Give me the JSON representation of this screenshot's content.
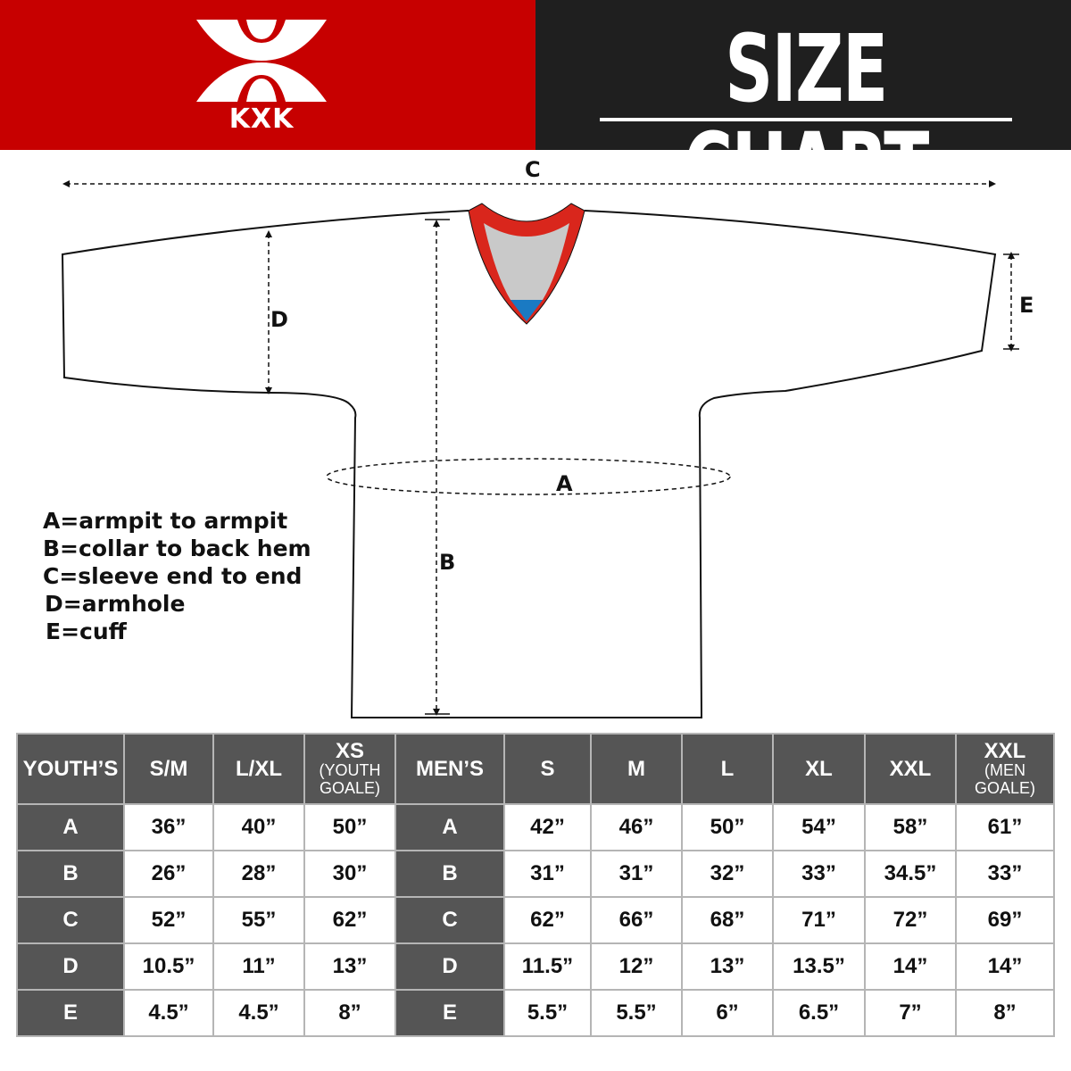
{
  "header": {
    "brand": "KXK",
    "title": "SIZE CHART",
    "colors": {
      "red": "#c70000",
      "dark": "#1f1f1f"
    }
  },
  "diagram": {
    "labels": {
      "a": "A",
      "b": "B",
      "c": "C",
      "d": "D",
      "e": "E"
    }
  },
  "legend": [
    "A=armpit to armpit",
    "B=collar to back hem",
    "C=sleeve end to end",
    "D=armhole",
    "E=cuff"
  ],
  "table": {
    "youth_header": "YOUTH’S",
    "men_header": "MEN’S",
    "youth_sizes": [
      {
        "main": "S/M",
        "sub": ""
      },
      {
        "main": "L/XL",
        "sub": ""
      },
      {
        "main": "XS",
        "sub": "(YOUTH GOALE)"
      }
    ],
    "men_sizes": [
      {
        "main": "S",
        "sub": ""
      },
      {
        "main": "M",
        "sub": ""
      },
      {
        "main": "L",
        "sub": ""
      },
      {
        "main": "XL",
        "sub": ""
      },
      {
        "main": "XXL",
        "sub": ""
      },
      {
        "main": "XXL",
        "sub": "(MEN GOALE)"
      }
    ],
    "rows": [
      {
        "label": "A",
        "youth": [
          "36”",
          "40”",
          "50”"
        ],
        "men": [
          "42”",
          "46”",
          "50”",
          "54”",
          "58”",
          "61”"
        ]
      },
      {
        "label": "B",
        "youth": [
          "26”",
          "28”",
          "30”"
        ],
        "men": [
          "31”",
          "31”",
          "32”",
          "33”",
          "34.5”",
          "33”"
        ]
      },
      {
        "label": "C",
        "youth": [
          "52”",
          "55”",
          "62”"
        ],
        "men": [
          "62”",
          "66”",
          "68”",
          "71”",
          "72”",
          "69”"
        ]
      },
      {
        "label": "D",
        "youth": [
          "10.5”",
          "11”",
          "13”"
        ],
        "men": [
          "11.5”",
          "12”",
          "13”",
          "13.5”",
          "14”",
          "14”"
        ]
      },
      {
        "label": "E",
        "youth": [
          "4.5”",
          "4.5”",
          "8”"
        ],
        "men": [
          "5.5”",
          "5.5”",
          "6”",
          "6.5”",
          "7”",
          "8”"
        ]
      }
    ]
  }
}
